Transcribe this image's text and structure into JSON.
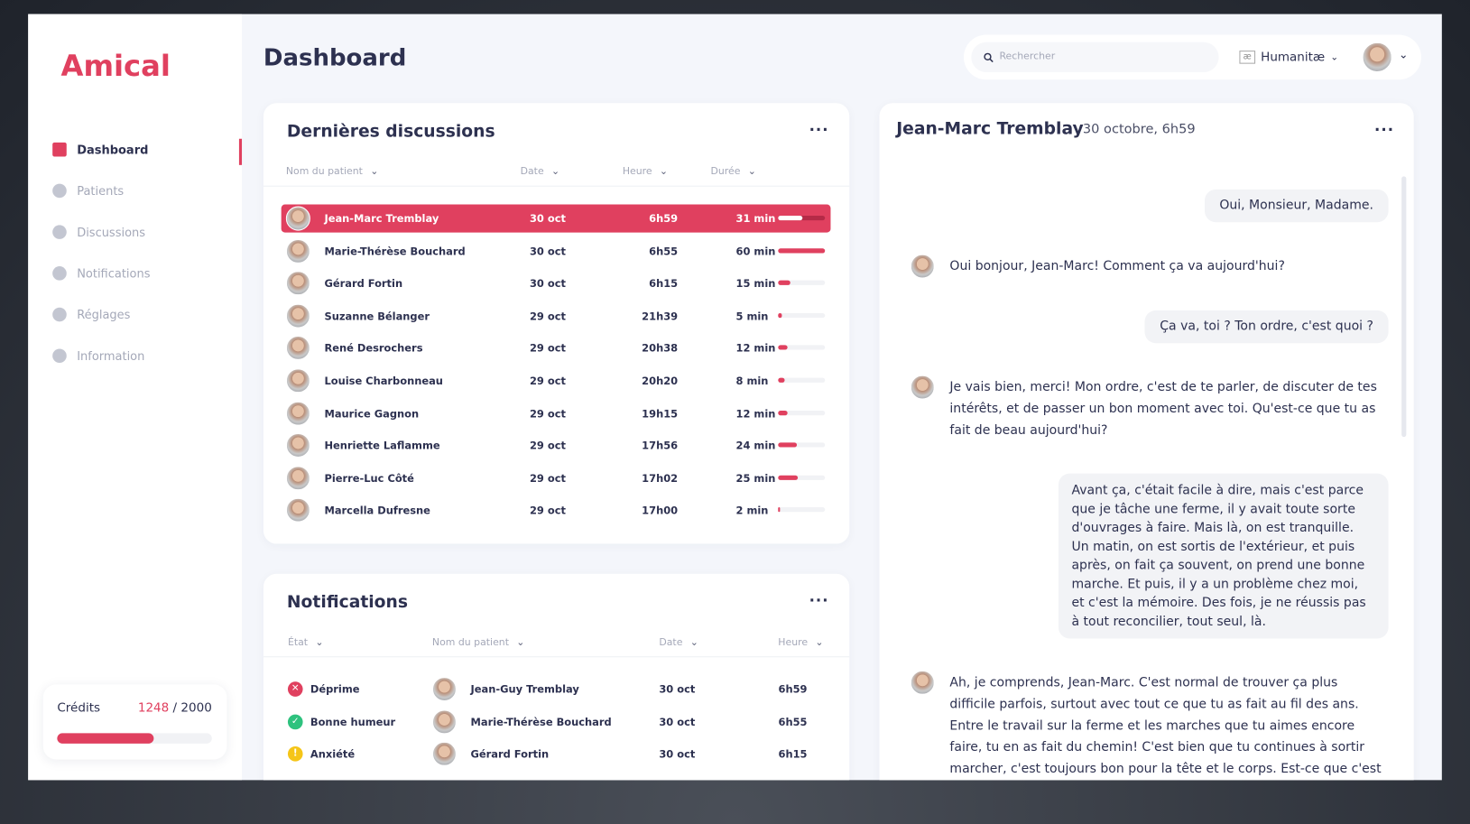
{
  "sidebar": {
    "logo": "Amical",
    "nav": [
      {
        "label": "Dashboard",
        "active": true
      },
      {
        "label": "Patients",
        "active": false
      },
      {
        "label": "Discussions",
        "active": false
      },
      {
        "label": "Notifications",
        "active": false
      },
      {
        "label": "Réglages",
        "active": false
      },
      {
        "label": "Information",
        "active": false
      }
    ],
    "credits": {
      "label": "Crédits",
      "used": 1248,
      "separator": "/",
      "total": 2000
    }
  },
  "header": {
    "title": "Dashboard",
    "search_placeholder": "Rechercher",
    "organization": "Humanitæ"
  },
  "discussions": {
    "title": "Dernières discussions",
    "columns": [
      "Nom du patient",
      "Date",
      "Heure",
      "Durée"
    ],
    "rows": [
      {
        "name": "Jean-Marc Tremblay",
        "date": "30 oct",
        "time": "6h59",
        "duration": "31 min",
        "minutes": 31,
        "selected": true
      },
      {
        "name": "Marie-Thérèse Bouchard",
        "date": "30 oct",
        "time": "6h55",
        "duration": "60 min",
        "minutes": 60,
        "selected": false
      },
      {
        "name": "Gérard Fortin",
        "date": "30 oct",
        "time": "6h15",
        "duration": "15 min",
        "minutes": 15,
        "selected": false
      },
      {
        "name": "Suzanne Bélanger",
        "date": "29 oct",
        "time": "21h39",
        "duration": "5 min",
        "minutes": 5,
        "selected": false
      },
      {
        "name": "René Desrochers",
        "date": "29 oct",
        "time": "20h38",
        "duration": "12 min",
        "minutes": 12,
        "selected": false
      },
      {
        "name": "Louise Charbonneau",
        "date": "29 oct",
        "time": "20h20",
        "duration": "8 min",
        "minutes": 8,
        "selected": false
      },
      {
        "name": "Maurice Gagnon",
        "date": "29 oct",
        "time": "19h15",
        "duration": "12 min",
        "minutes": 12,
        "selected": false
      },
      {
        "name": "Henriette Laflamme",
        "date": "29 oct",
        "time": "17h56",
        "duration": "24 min",
        "minutes": 24,
        "selected": false
      },
      {
        "name": "Pierre-Luc Côté",
        "date": "29 oct",
        "time": "17h02",
        "duration": "25 min",
        "minutes": 25,
        "selected": false
      },
      {
        "name": "Marcella Dufresne",
        "date": "29 oct",
        "time": "17h00",
        "duration": "2 min",
        "minutes": 2,
        "selected": false
      }
    ]
  },
  "notifications": {
    "title": "Notifications",
    "columns": [
      "État",
      "Nom du patient",
      "Date",
      "Heure"
    ],
    "rows": [
      {
        "status": "Déprime",
        "icon": "error",
        "name": "Jean-Guy Tremblay",
        "date": "30 oct",
        "time": "6h59"
      },
      {
        "status": "Bonne humeur",
        "icon": "success",
        "name": "Marie-Thérèse Bouchard",
        "date": "30 oct",
        "time": "6h55"
      },
      {
        "status": "Anxiété",
        "icon": "warning",
        "name": "Gérard Fortin",
        "date": "30 oct",
        "time": "6h15"
      }
    ]
  },
  "conversation": {
    "patient": "Jean-Marc Tremblay",
    "datetime": "30 octobre, 6h59",
    "messages": [
      {
        "from": "patient",
        "text": "Oui, Monsieur, Madame."
      },
      {
        "from": "assistant",
        "text": "Oui bonjour, Jean-Marc! Comment ça va aujourd'hui?"
      },
      {
        "from": "patient",
        "text": "Ça va, toi ? Ton ordre, c'est quoi ?"
      },
      {
        "from": "assistant",
        "text": "Je vais bien, merci! Mon ordre, c'est de te parler, de discuter de tes intérêts, et de passer un bon moment avec toi. Qu'est-ce que tu as fait de beau aujourd'hui?"
      },
      {
        "from": "patient",
        "text": "Avant ça, c'était facile à dire, mais c'est parce que je tâche une ferme, il y avait toute sorte d'ouvrages à faire. Mais là, on est tranquille. Un matin, on est sortis de l'extérieur, et puis après, on fait ça souvent, on prend une bonne marche. Et puis, il y a un problème chez moi, et c'est la mémoire. Des fois, je ne réussis pas à tout reconcilier, tout seul, là."
      },
      {
        "from": "assistant",
        "text": "Ah, je comprends, Jean-Marc. C'est normal de trouver ça plus difficile parfois, surtout avec tout ce que tu as fait au fil des ans. Entre le travail sur la ferme et les marches que tu aimes encore faire, tu en as fait du chemin! C'est bien que tu continues à sortir marcher, c'est toujours bon pour la tête et le corps. Est-ce que c'est dans ton coin que tu marches souvent, ou tu aimes changer d'endroit?"
      }
    ]
  }
}
